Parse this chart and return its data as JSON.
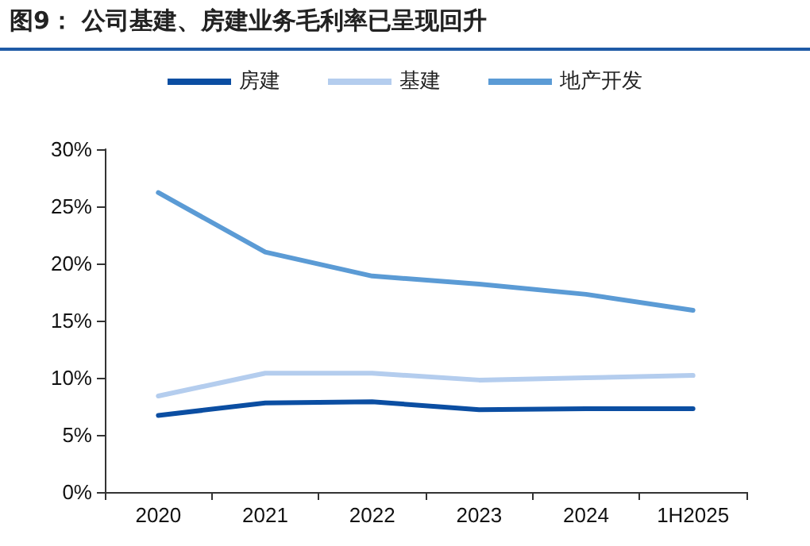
{
  "chart_data": {
    "type": "line",
    "title": "图9： 公司基建、房建业务毛利率已呈现回升",
    "categories": [
      "2020",
      "2021",
      "2022",
      "2023",
      "2024",
      "1H2025"
    ],
    "series": [
      {
        "name": "房建",
        "color": "#0b4ea2",
        "values": [
          6.7,
          7.8,
          7.9,
          7.2,
          7.3,
          7.3
        ]
      },
      {
        "name": "基建",
        "color": "#b4cdee",
        "values": [
          8.4,
          10.4,
          10.4,
          9.8,
          10.0,
          10.2
        ]
      },
      {
        "name": "地产开发",
        "color": "#5b9bd5",
        "values": [
          26.2,
          21.0,
          18.9,
          18.2,
          17.3,
          15.9
        ]
      }
    ],
    "ylim": [
      0,
      30
    ],
    "yticks": [
      {
        "value": 0,
        "label": "0%"
      },
      {
        "value": 5,
        "label": "5%"
      },
      {
        "value": 10,
        "label": "10%"
      },
      {
        "value": 15,
        "label": "15%"
      },
      {
        "value": 20,
        "label": "20%"
      },
      {
        "value": 25,
        "label": "25%"
      },
      {
        "value": 30,
        "label": "30%"
      }
    ],
    "grid": false,
    "legend": "top",
    "marker": "none",
    "line_style": "solid"
  }
}
